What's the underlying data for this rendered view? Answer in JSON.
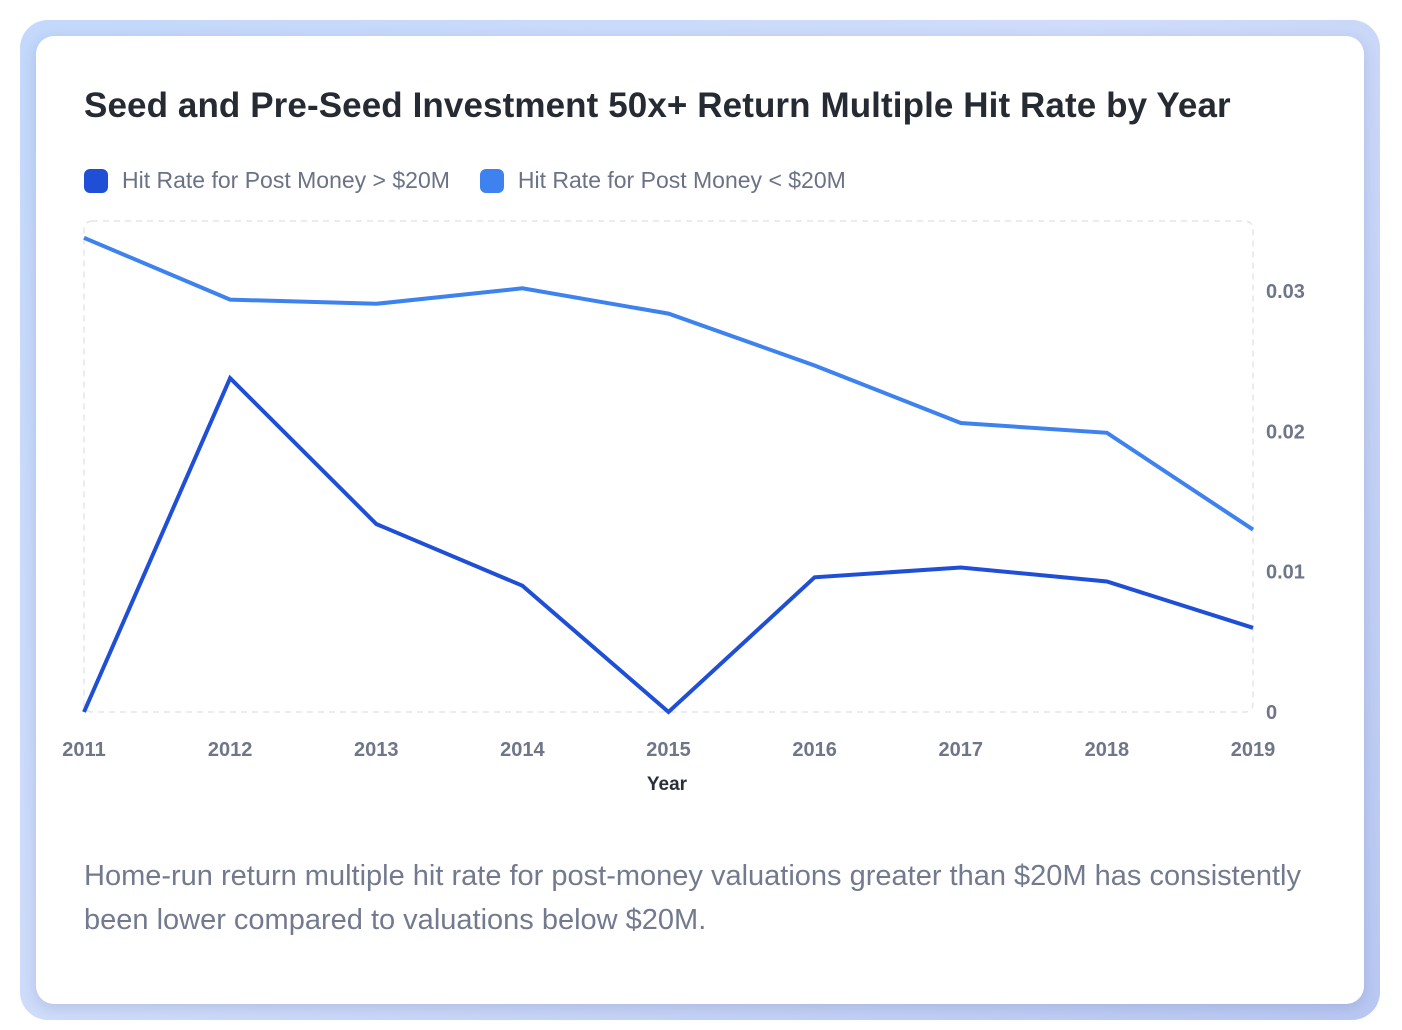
{
  "title": "Seed and Pre-Seed Investment 50x+ Return Multiple Hit Rate by Year",
  "caption": "Home-run return multiple hit rate for post-money valuations greater than $20M has consistently been lower compared to valuations below $20M.",
  "colors": {
    "series_above": "#1f4fd6",
    "series_below": "#3d82ee",
    "grid": "#e2e5ec",
    "card_border": "#c3d8fb"
  },
  "chart_data": {
    "type": "line",
    "x": [
      "2011",
      "2012",
      "2013",
      "2014",
      "2015",
      "2016",
      "2017",
      "2018",
      "2019"
    ],
    "xlabel": "Year",
    "ylabel": "",
    "ylim": [
      0,
      0.035
    ],
    "y_ticks": [
      "0",
      "0.01",
      "0.02",
      "0.03"
    ],
    "y_axis_position": "right",
    "grid": "dashed border",
    "legend_position": "top-left",
    "series": [
      {
        "name": "Hit Rate for Post Money > $20M",
        "color": "#1f4fd6",
        "values": [
          0,
          0.0238,
          0.0134,
          0.009,
          0,
          0.0096,
          0.0103,
          0.0093,
          0.006
        ]
      },
      {
        "name": "Hit Rate for Post Money < $20M",
        "color": "#3d82ee",
        "values": [
          0.0338,
          0.0294,
          0.0291,
          0.0302,
          0.0284,
          0.0247,
          0.0206,
          0.0199,
          0.013
        ]
      }
    ]
  }
}
